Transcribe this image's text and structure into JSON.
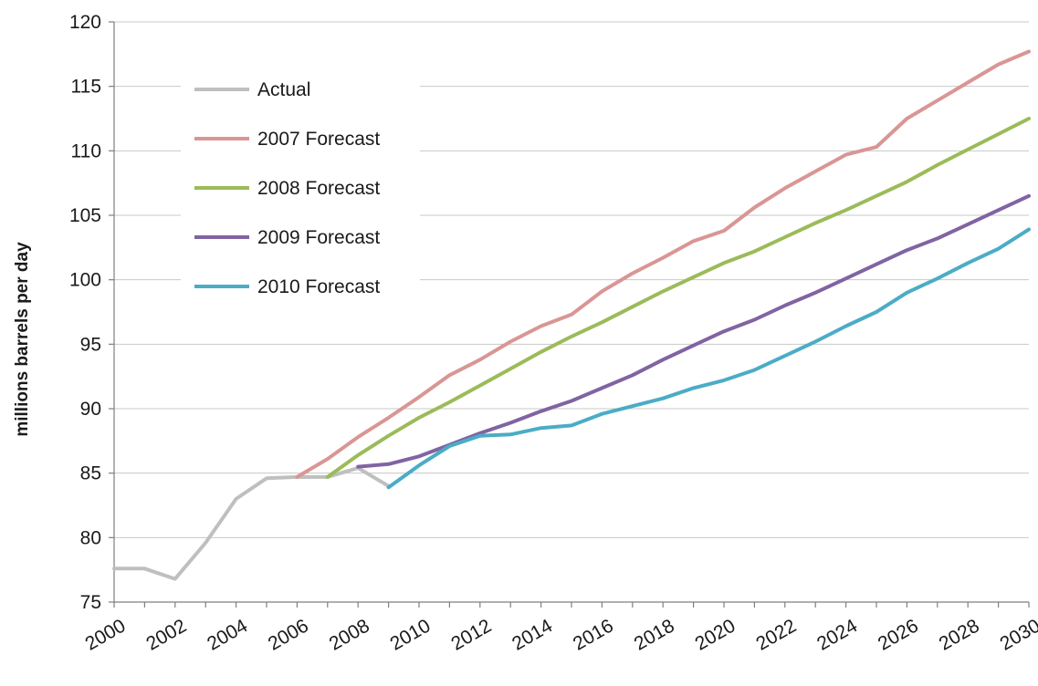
{
  "chart_data": {
    "type": "line",
    "title": "",
    "xlabel": "",
    "ylabel": "millions barrels per day",
    "ylim": [
      75,
      120
    ],
    "yticks": [
      75,
      80,
      85,
      90,
      95,
      100,
      105,
      110,
      115,
      120
    ],
    "xlim": [
      2000,
      2030
    ],
    "xticks": [
      2000,
      2002,
      2004,
      2006,
      2008,
      2010,
      2012,
      2014,
      2016,
      2018,
      2020,
      2022,
      2024,
      2026,
      2028,
      2030
    ],
    "grid": true,
    "legend_position": "top-left",
    "series": [
      {
        "name": "Actual",
        "color": "#bfbfbf",
        "points": [
          [
            2000,
            77.6
          ],
          [
            2001,
            77.6
          ],
          [
            2002,
            76.8
          ],
          [
            2003,
            79.6
          ],
          [
            2004,
            83.0
          ],
          [
            2005,
            84.6
          ],
          [
            2006,
            84.7
          ],
          [
            2007,
            84.7
          ],
          [
            2008,
            85.4
          ],
          [
            2009,
            84.0
          ]
        ]
      },
      {
        "name": "2007 Forecast",
        "color": "#d99694",
        "points": [
          [
            2006,
            84.7
          ],
          [
            2007,
            86.1
          ],
          [
            2008,
            87.8
          ],
          [
            2009,
            89.3
          ],
          [
            2010,
            90.9
          ],
          [
            2011,
            92.6
          ],
          [
            2012,
            93.8
          ],
          [
            2013,
            95.2
          ],
          [
            2014,
            96.4
          ],
          [
            2015,
            97.3
          ],
          [
            2016,
            99.1
          ],
          [
            2017,
            100.5
          ],
          [
            2018,
            101.7
          ],
          [
            2019,
            103.0
          ],
          [
            2020,
            103.8
          ],
          [
            2021,
            105.6
          ],
          [
            2022,
            107.1
          ],
          [
            2023,
            108.4
          ],
          [
            2024,
            109.7
          ],
          [
            2025,
            110.3
          ],
          [
            2026,
            112.5
          ],
          [
            2027,
            113.9
          ],
          [
            2028,
            115.3
          ],
          [
            2029,
            116.7
          ],
          [
            2030,
            117.7
          ]
        ]
      },
      {
        "name": "2008 Forecast",
        "color": "#9bbb59",
        "points": [
          [
            2007,
            84.7
          ],
          [
            2008,
            86.4
          ],
          [
            2009,
            87.9
          ],
          [
            2010,
            89.3
          ],
          [
            2011,
            90.5
          ],
          [
            2012,
            91.8
          ],
          [
            2013,
            93.1
          ],
          [
            2014,
            94.4
          ],
          [
            2015,
            95.6
          ],
          [
            2016,
            96.7
          ],
          [
            2017,
            97.9
          ],
          [
            2018,
            99.1
          ],
          [
            2019,
            100.2
          ],
          [
            2020,
            101.3
          ],
          [
            2021,
            102.2
          ],
          [
            2022,
            103.3
          ],
          [
            2023,
            104.4
          ],
          [
            2024,
            105.4
          ],
          [
            2025,
            106.5
          ],
          [
            2026,
            107.6
          ],
          [
            2027,
            108.9
          ],
          [
            2028,
            110.1
          ],
          [
            2029,
            111.3
          ],
          [
            2030,
            112.5
          ]
        ]
      },
      {
        "name": "2009 Forecast",
        "color": "#8064a2",
        "points": [
          [
            2008,
            85.5
          ],
          [
            2009,
            85.7
          ],
          [
            2010,
            86.3
          ],
          [
            2011,
            87.2
          ],
          [
            2012,
            88.1
          ],
          [
            2013,
            88.9
          ],
          [
            2014,
            89.8
          ],
          [
            2015,
            90.6
          ],
          [
            2016,
            91.6
          ],
          [
            2017,
            92.6
          ],
          [
            2018,
            93.8
          ],
          [
            2019,
            94.9
          ],
          [
            2020,
            96.0
          ],
          [
            2021,
            96.9
          ],
          [
            2022,
            98.0
          ],
          [
            2023,
            99.0
          ],
          [
            2024,
            100.1
          ],
          [
            2025,
            101.2
          ],
          [
            2026,
            102.3
          ],
          [
            2027,
            103.2
          ],
          [
            2028,
            104.3
          ],
          [
            2029,
            105.4
          ],
          [
            2030,
            106.5
          ]
        ]
      },
      {
        "name": "2010 Forecast",
        "color": "#4bacc6",
        "points": [
          [
            2009,
            83.9
          ],
          [
            2010,
            85.6
          ],
          [
            2011,
            87.1
          ],
          [
            2012,
            87.9
          ],
          [
            2013,
            88.0
          ],
          [
            2014,
            88.5
          ],
          [
            2015,
            88.7
          ],
          [
            2016,
            89.6
          ],
          [
            2017,
            90.2
          ],
          [
            2018,
            90.8
          ],
          [
            2019,
            91.6
          ],
          [
            2020,
            92.2
          ],
          [
            2021,
            93.0
          ],
          [
            2022,
            94.1
          ],
          [
            2023,
            95.2
          ],
          [
            2024,
            96.4
          ],
          [
            2025,
            97.5
          ],
          [
            2026,
            99.0
          ],
          [
            2027,
            100.1
          ],
          [
            2028,
            101.3
          ],
          [
            2029,
            102.4
          ],
          [
            2030,
            103.9
          ]
        ]
      }
    ]
  }
}
